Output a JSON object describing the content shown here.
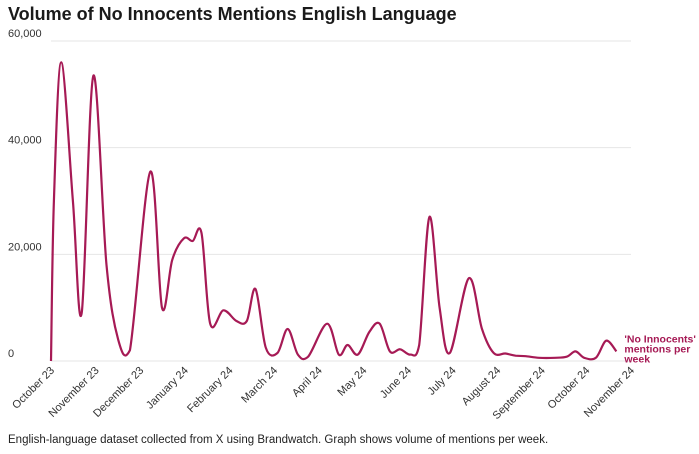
{
  "title": "Volume of No Innocents Mentions English Language",
  "caption": "English-language dataset collected from X using Brandwatch. Graph shows volume of mentions per week.",
  "accent_color": "#a61a55",
  "chart_data": {
    "type": "line",
    "title": "Volume of No Innocents Mentions English Language",
    "xlabel": "",
    "ylabel": "",
    "ylim": [
      0,
      60000
    ],
    "yticks": [
      0,
      20000,
      40000,
      60000
    ],
    "ytick_labels": [
      "0",
      "20,000",
      "40,000",
      "60,000"
    ],
    "x_tick_labels": [
      "October 23",
      "November 23",
      "December 23",
      "January 24",
      "February 24",
      "March 24",
      "April 24",
      "May 24",
      "June 24",
      "July 24",
      "August 24",
      "September 24",
      "October 24",
      "November 24"
    ],
    "x_range": [
      "2023-10-01",
      "2024-11-01"
    ],
    "grid": true,
    "series": [
      {
        "name": "'No Innocents' mentions per week",
        "color": "#a61a55",
        "points": [
          [
            "2023-10-01",
            0
          ],
          [
            "2023-10-03",
            30000
          ],
          [
            "2023-10-08",
            56000
          ],
          [
            "2023-10-16",
            30000
          ],
          [
            "2023-10-22",
            9000
          ],
          [
            "2023-10-30",
            53500
          ],
          [
            "2023-11-08",
            18000
          ],
          [
            "2023-11-16",
            4000
          ],
          [
            "2023-11-24",
            2000
          ],
          [
            "2023-12-08",
            35500
          ],
          [
            "2023-12-16",
            10000
          ],
          [
            "2023-12-23",
            19000
          ],
          [
            "2023-12-31",
            23000
          ],
          [
            "2024-01-06",
            22500
          ],
          [
            "2024-01-12",
            24000
          ],
          [
            "2024-01-18",
            7000
          ],
          [
            "2024-01-27",
            9500
          ],
          [
            "2024-02-05",
            7500
          ],
          [
            "2024-02-12",
            7500
          ],
          [
            "2024-02-18",
            13500
          ],
          [
            "2024-02-25",
            2500
          ],
          [
            "2024-03-04",
            1500
          ],
          [
            "2024-03-11",
            6000
          ],
          [
            "2024-03-18",
            1200
          ],
          [
            "2024-03-25",
            800
          ],
          [
            "2024-04-07",
            7000
          ],
          [
            "2024-04-15",
            1200
          ],
          [
            "2024-04-21",
            3000
          ],
          [
            "2024-04-28",
            1200
          ],
          [
            "2024-05-06",
            5500
          ],
          [
            "2024-05-13",
            7000
          ],
          [
            "2024-05-20",
            1800
          ],
          [
            "2024-05-27",
            2200
          ],
          [
            "2024-06-03",
            1200
          ],
          [
            "2024-06-09",
            3000
          ],
          [
            "2024-06-16",
            27000
          ],
          [
            "2024-06-23",
            10000
          ],
          [
            "2024-06-30",
            1500
          ],
          [
            "2024-07-13",
            15500
          ],
          [
            "2024-07-22",
            6000
          ],
          [
            "2024-07-30",
            1500
          ],
          [
            "2024-08-07",
            1400
          ],
          [
            "2024-08-14",
            1000
          ],
          [
            "2024-08-21",
            900
          ],
          [
            "2024-08-30",
            600
          ],
          [
            "2024-09-10",
            600
          ],
          [
            "2024-09-18",
            800
          ],
          [
            "2024-09-24",
            1800
          ],
          [
            "2024-09-30",
            600
          ],
          [
            "2024-10-08",
            600
          ],
          [
            "2024-10-15",
            3800
          ],
          [
            "2024-10-22",
            1800
          ]
        ]
      }
    ]
  }
}
